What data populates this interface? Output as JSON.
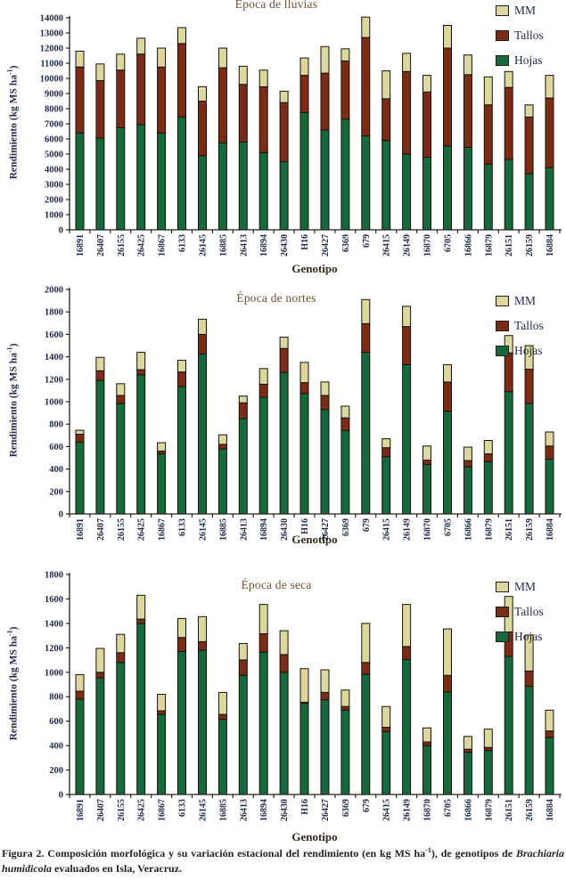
{
  "page": {
    "caption": {
      "label": "Figura 2.",
      "text_before": " Composición morfológica y su variación estacional del rendimiento (en kg MS ha",
      "sup": "-1",
      "text_mid": "), de genotipos de ",
      "species": "Brachiaria humidicola",
      "text_after": " evaluados en Isla, Veracruz."
    }
  },
  "chart_data": [
    {
      "type": "bar",
      "stacked": true,
      "title": "Época de lluvias",
      "xlabel": "Genotipo",
      "ylabel": "Rendimiento (kg MS ha-1)",
      "ylim": [
        0,
        14000
      ],
      "ytick_step": 1000,
      "grid": false,
      "legend_position": "top-right",
      "legend_order": [
        "MM",
        "Tallos",
        "Hojas"
      ],
      "categories": [
        "16891",
        "26407",
        "26155",
        "26425",
        "16867",
        "6133",
        "26145",
        "16885",
        "26413",
        "16894",
        "26430",
        "H16",
        "26427",
        "6369",
        "679",
        "26415",
        "26149",
        "16870",
        "6705",
        "16866",
        "16879",
        "26151",
        "26159",
        "16884"
      ],
      "series": [
        {
          "name": "Hojas",
          "color": "#16693d",
          "values": [
            6400,
            6050,
            6750,
            6950,
            6400,
            7450,
            4900,
            5750,
            5800,
            5100,
            4500,
            7750,
            6600,
            7300,
            6200,
            5900,
            5000,
            4800,
            5550,
            5450,
            4350,
            4650,
            3700,
            4100
          ]
        },
        {
          "name": "Tallos",
          "color": "#7b2c17",
          "values": [
            4350,
            3800,
            3800,
            4650,
            4350,
            4850,
            3600,
            4950,
            3800,
            4350,
            3900,
            2450,
            3750,
            3850,
            6500,
            2750,
            5450,
            4300,
            6450,
            4800,
            3900,
            4750,
            3750,
            4600
          ]
        },
        {
          "name": "MM",
          "color": "#dcd79e",
          "values": [
            1050,
            1100,
            1050,
            1050,
            1250,
            1050,
            950,
            1300,
            1200,
            1100,
            750,
            1150,
            1750,
            800,
            1350,
            1850,
            1200,
            1100,
            1500,
            1300,
            1850,
            1050,
            800,
            1500
          ]
        }
      ]
    },
    {
      "type": "bar",
      "stacked": true,
      "title": "Época de nortes",
      "xlabel": "Genotipo",
      "ylabel": "Rendimiento (kg MS ha-1)",
      "ylim": [
        0,
        2000
      ],
      "ytick_step": 200,
      "grid": false,
      "legend_position": "top-right",
      "legend_order": [
        "MM",
        "Tallos",
        "Hojas"
      ],
      "categories": [
        "16891",
        "26407",
        "26155",
        "26425",
        "16867",
        "6133",
        "26145",
        "16885",
        "26413",
        "16894",
        "26430",
        "H16",
        "26427",
        "6369",
        "679",
        "26415",
        "26149",
        "16870",
        "6705",
        "16866",
        "16879",
        "26151",
        "26159",
        "16884"
      ],
      "series": [
        {
          "name": "Hojas",
          "color": "#16693d",
          "values": [
            640,
            1190,
            985,
            1240,
            535,
            1135,
            1425,
            580,
            850,
            1040,
            1260,
            1075,
            930,
            745,
            1440,
            510,
            1330,
            440,
            915,
            420,
            465,
            1090,
            985,
            490
          ]
        },
        {
          "name": "Tallos",
          "color": "#7b2c17",
          "values": [
            70,
            85,
            70,
            45,
            25,
            130,
            175,
            40,
            140,
            115,
            215,
            95,
            125,
            110,
            255,
            80,
            340,
            40,
            260,
            55,
            70,
            345,
            305,
            115
          ]
        },
        {
          "name": "MM",
          "color": "#dcd79e",
          "values": [
            35,
            120,
            105,
            155,
            75,
            105,
            135,
            85,
            60,
            140,
            100,
            180,
            120,
            105,
            215,
            80,
            180,
            125,
            155,
            120,
            120,
            155,
            210,
            125
          ]
        }
      ]
    },
    {
      "type": "bar",
      "stacked": true,
      "title": "Época de seca",
      "xlabel": "Genotipo",
      "ylabel": "Rendimiento (kg MS ha-1)",
      "ylim": [
        0,
        1800
      ],
      "ytick_step": 200,
      "grid": false,
      "legend_position": "top-right",
      "legend_order": [
        "MM",
        "Tallos",
        "Hojas"
      ],
      "categories": [
        "16891",
        "26407",
        "26155",
        "26425",
        "16867",
        "6133",
        "26145",
        "16885",
        "26413",
        "16894",
        "26430",
        "H16",
        "26427",
        "6369",
        "679",
        "26415",
        "26149",
        "16870",
        "6705",
        "16866",
        "16879",
        "26151",
        "26159",
        "16884"
      ],
      "series": [
        {
          "name": "Hojas",
          "color": "#16693d",
          "values": [
            780,
            955,
            1080,
            1400,
            655,
            1170,
            1180,
            615,
            975,
            1165,
            1000,
            745,
            775,
            690,
            985,
            515,
            1105,
            400,
            840,
            345,
            360,
            1130,
            885,
            465
          ]
        },
        {
          "name": "Tallos",
          "color": "#7b2c17",
          "values": [
            65,
            45,
            80,
            35,
            30,
            115,
            70,
            40,
            125,
            150,
            145,
            10,
            60,
            30,
            95,
            35,
            105,
            30,
            135,
            25,
            25,
            200,
            125,
            55
          ]
        },
        {
          "name": "MM",
          "color": "#dcd79e",
          "values": [
            135,
            195,
            150,
            195,
            135,
            155,
            205,
            180,
            135,
            240,
            195,
            275,
            185,
            135,
            320,
            170,
            345,
            115,
            380,
            105,
            150,
            290,
            295,
            170
          ]
        }
      ]
    }
  ]
}
